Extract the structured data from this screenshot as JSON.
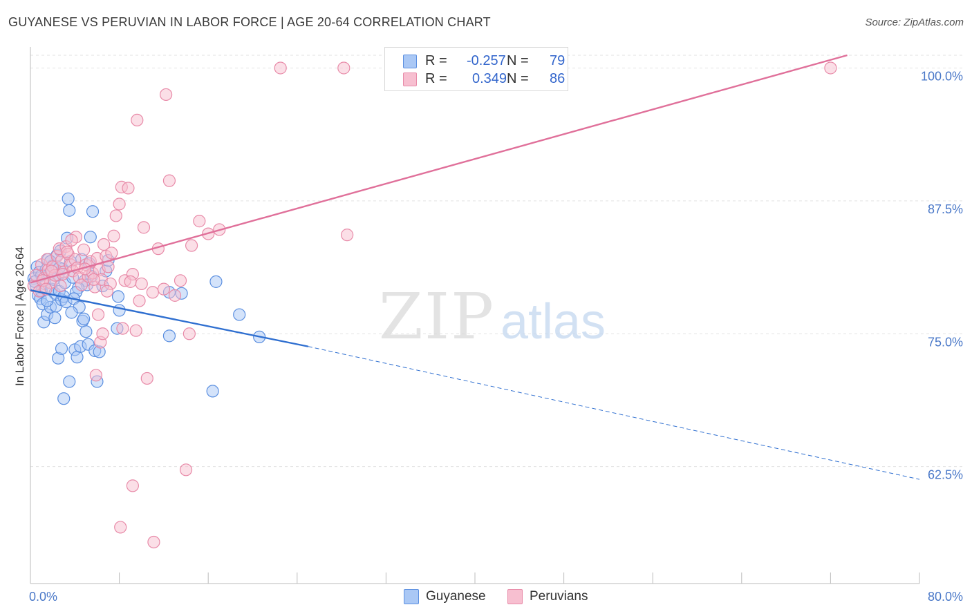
{
  "title": "GUYANESE VS PERUVIAN IN LABOR FORCE | AGE 20-64 CORRELATION CHART",
  "source": "Source: ZipAtlas.com",
  "watermark": {
    "zip": "ZIP",
    "atlas": "atlas"
  },
  "legend": {
    "series1": {
      "r_label": "R =",
      "r_value": "-0.257",
      "n_label": "N =",
      "n_value": "79"
    },
    "series2": {
      "r_label": "R =",
      "r_value": "0.349",
      "n_label": "N =",
      "n_value": "86"
    }
  },
  "colors": {
    "guyanese_fill": "#aac8f5",
    "guyanese_stroke": "#5b8fe0",
    "guyanese_line": "#2f6fd0",
    "peruvian_fill": "#f7bfd0",
    "peruvian_stroke": "#e88aa8",
    "peruvian_line": "#e0709a",
    "tick_label": "#4a78c8",
    "grid": "#e2e2e2"
  },
  "chart_data": {
    "type": "scatter",
    "title": "GUYANESE VS PERUVIAN IN LABOR FORCE | AGE 20-64 CORRELATION CHART",
    "xlabel": "",
    "ylabel": "In Labor Force | Age 20-64",
    "xlim": [
      0,
      80
    ],
    "ylim": [
      51.5,
      102.5
    ],
    "x_tick_labels": [
      "0.0%",
      "80.0%"
    ],
    "y_ticks": [
      62.5,
      75.0,
      87.5,
      100.0
    ],
    "y_tick_labels": [
      "62.5%",
      "75.0%",
      "87.5%",
      "100.0%"
    ],
    "grid": true,
    "legend_labels": [
      "Guyanese",
      "Peruvians"
    ],
    "series": [
      {
        "name": "Guyanese",
        "trend": {
          "x": [
            0,
            25
          ],
          "y": [
            79.1,
            73.8
          ],
          "dashed_x": [
            25,
            80
          ],
          "dashed_y": [
            73.8,
            61.3
          ]
        },
        "points": [
          [
            0.3,
            80.2
          ],
          [
            0.5,
            79.5
          ],
          [
            0.6,
            81.3
          ],
          [
            0.7,
            78.6
          ],
          [
            0.8,
            80.8
          ],
          [
            0.9,
            78.3
          ],
          [
            1.0,
            79.0
          ],
          [
            1.1,
            77.8
          ],
          [
            1.2,
            76.1
          ],
          [
            1.3,
            79.7
          ],
          [
            1.4,
            81.0
          ],
          [
            1.5,
            76.8
          ],
          [
            1.6,
            82.0
          ],
          [
            1.7,
            80.6
          ],
          [
            1.8,
            77.5
          ],
          [
            1.9,
            79.2
          ],
          [
            2.0,
            81.4
          ],
          [
            2.1,
            80.1
          ],
          [
            2.2,
            78.8
          ],
          [
            2.3,
            77.6
          ],
          [
            2.4,
            82.4
          ],
          [
            2.5,
            80.5
          ],
          [
            2.6,
            79.0
          ],
          [
            2.7,
            82.8
          ],
          [
            2.8,
            78.2
          ],
          [
            2.9,
            81.1
          ],
          [
            3.0,
            78.5
          ],
          [
            3.1,
            79.8
          ],
          [
            3.2,
            78.0
          ],
          [
            3.3,
            84.0
          ],
          [
            3.4,
            87.7
          ],
          [
            3.5,
            86.6
          ],
          [
            2.5,
            72.7
          ],
          [
            2.8,
            73.6
          ],
          [
            3.5,
            70.5
          ],
          [
            3.0,
            68.9
          ],
          [
            4.0,
            73.5
          ],
          [
            4.2,
            72.8
          ],
          [
            4.5,
            73.8
          ],
          [
            4.7,
            76.2
          ],
          [
            4.8,
            76.4
          ],
          [
            5.0,
            75.2
          ],
          [
            5.2,
            74.0
          ],
          [
            5.5,
            80.4
          ],
          [
            5.8,
            73.4
          ],
          [
            6.0,
            70.5
          ],
          [
            6.2,
            73.3
          ],
          [
            5.6,
            86.5
          ],
          [
            5.4,
            84.1
          ],
          [
            4.6,
            82.0
          ],
          [
            4.9,
            80.0
          ],
          [
            5.1,
            79.6
          ],
          [
            5.3,
            81.6
          ],
          [
            4.3,
            79.3
          ],
          [
            4.1,
            78.9
          ],
          [
            3.8,
            80.3
          ],
          [
            3.6,
            81.8
          ],
          [
            3.9,
            78.3
          ],
          [
            4.4,
            77.5
          ],
          [
            3.7,
            77.0
          ],
          [
            7.8,
            75.5
          ],
          [
            8.0,
            77.2
          ],
          [
            7.9,
            78.5
          ],
          [
            6.5,
            79.5
          ],
          [
            6.8,
            80.9
          ],
          [
            7.0,
            81.9
          ],
          [
            12.5,
            78.9
          ],
          [
            12.5,
            74.8
          ],
          [
            13.6,
            78.8
          ],
          [
            16.7,
            79.9
          ],
          [
            16.4,
            69.6
          ],
          [
            18.8,
            76.8
          ],
          [
            20.6,
            74.7
          ],
          [
            1.5,
            78.1
          ],
          [
            2.2,
            76.5
          ],
          [
            1.0,
            80.5
          ],
          [
            0.4,
            79.9
          ],
          [
            1.8,
            81.8
          ],
          [
            2.6,
            81.2
          ]
        ]
      },
      {
        "name": "Peruvians",
        "trend": {
          "x": [
            0,
            73.5
          ],
          "y": [
            79.8,
            101.2
          ]
        },
        "points": [
          [
            0.3,
            79.5
          ],
          [
            0.5,
            80.5
          ],
          [
            0.8,
            79.0
          ],
          [
            1.0,
            81.5
          ],
          [
            1.2,
            80.2
          ],
          [
            1.5,
            82.0
          ],
          [
            1.6,
            81.0
          ],
          [
            1.8,
            79.8
          ],
          [
            2.0,
            81.3
          ],
          [
            2.2,
            80.5
          ],
          [
            2.4,
            82.3
          ],
          [
            2.6,
            83.0
          ],
          [
            2.8,
            81.9
          ],
          [
            3.0,
            80.8
          ],
          [
            3.2,
            83.2
          ],
          [
            3.4,
            82.5
          ],
          [
            3.6,
            81.5
          ],
          [
            3.8,
            80.9
          ],
          [
            4.0,
            82.0
          ],
          [
            4.2,
            81.2
          ],
          [
            4.4,
            80.3
          ],
          [
            4.6,
            79.6
          ],
          [
            4.8,
            82.9
          ],
          [
            5.0,
            81.5
          ],
          [
            5.2,
            80.4
          ],
          [
            5.4,
            81.8
          ],
          [
            5.6,
            80.7
          ],
          [
            5.8,
            79.4
          ],
          [
            6.0,
            82.1
          ],
          [
            6.2,
            81.0
          ],
          [
            6.4,
            80.1
          ],
          [
            6.6,
            83.4
          ],
          [
            6.8,
            82.3
          ],
          [
            7.0,
            81.3
          ],
          [
            7.2,
            79.7
          ],
          [
            7.5,
            84.2
          ],
          [
            7.7,
            86.1
          ],
          [
            8.0,
            87.2
          ],
          [
            8.2,
            88.8
          ],
          [
            8.5,
            80.0
          ],
          [
            8.8,
            88.7
          ],
          [
            9.2,
            80.6
          ],
          [
            9.5,
            75.3
          ],
          [
            9.8,
            78.1
          ],
          [
            10.2,
            85.0
          ],
          [
            10.5,
            70.8
          ],
          [
            11.0,
            78.9
          ],
          [
            11.5,
            83.0
          ],
          [
            12.0,
            79.2
          ],
          [
            12.5,
            89.4
          ],
          [
            13.0,
            78.6
          ],
          [
            13.5,
            80.0
          ],
          [
            14.0,
            62.2
          ],
          [
            14.3,
            75.0
          ],
          [
            14.5,
            83.3
          ],
          [
            15.2,
            85.6
          ],
          [
            16.0,
            84.4
          ],
          [
            17.0,
            84.8
          ],
          [
            22.5,
            100.0
          ],
          [
            28.2,
            100.0
          ],
          [
            28.5,
            84.3
          ],
          [
            72.0,
            100.0
          ],
          [
            9.6,
            95.1
          ],
          [
            12.2,
            97.5
          ],
          [
            9.2,
            60.7
          ],
          [
            8.1,
            56.8
          ],
          [
            11.1,
            55.4
          ],
          [
            6.3,
            74.2
          ],
          [
            6.1,
            76.8
          ],
          [
            6.5,
            75.0
          ],
          [
            5.9,
            71.1
          ],
          [
            1.1,
            80.0
          ],
          [
            1.9,
            80.9
          ],
          [
            2.7,
            79.5
          ],
          [
            3.3,
            82.7
          ],
          [
            4.1,
            84.1
          ],
          [
            4.9,
            81.1
          ],
          [
            5.7,
            80.1
          ],
          [
            6.9,
            79.0
          ],
          [
            7.3,
            82.6
          ],
          [
            8.3,
            75.5
          ],
          [
            9.0,
            79.9
          ],
          [
            10.0,
            79.7
          ],
          [
            1.4,
            79.2
          ],
          [
            2.9,
            80.6
          ],
          [
            3.7,
            83.8
          ]
        ]
      }
    ]
  }
}
